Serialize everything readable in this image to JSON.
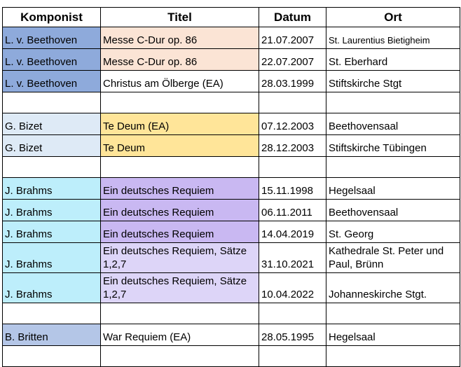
{
  "headers": [
    "Komponist",
    "Titel",
    "Datum",
    "Ort"
  ],
  "rows": [
    {
      "komponist": "L. v. Beethoven",
      "titel": "Messe C-Dur op. 86",
      "datum": "21.07.2007",
      "ort": "St. Laurentius Bietigheim"
    },
    {
      "komponist": "L. v. Beethoven",
      "titel": "Messe C-Dur op. 86",
      "datum": "22.07.2007",
      "ort": "St. Eberhard"
    },
    {
      "komponist": "L. v. Beethoven",
      "titel": "Christus am Ölberge (EA)",
      "datum": "28.03.1999",
      "ort": "Stiftskirche Stgt"
    },
    {
      "komponist": "G. Bizet",
      "titel": "Te Deum (EA)",
      "datum": "07.12.2003",
      "ort": "Beethovensaal"
    },
    {
      "komponist": "G. Bizet",
      "titel": "Te Deum",
      "datum": "28.12.2003",
      "ort": "Stiftskirche Tübingen"
    },
    {
      "komponist": "J. Brahms",
      "titel": "Ein deutsches Requiem",
      "datum": "15.11.1998",
      "ort": "Hegelsaal"
    },
    {
      "komponist": "J. Brahms",
      "titel": "Ein deutsches Requiem",
      "datum": "06.11.2011",
      "ort": "Beethovensaal"
    },
    {
      "komponist": "J. Brahms",
      "titel": "Ein deutsches Requiem",
      "datum": "14.04.2019",
      "ort": "St. Georg"
    },
    {
      "komponist": "J. Brahms",
      "titel": "Ein deutsches Requiem, Sätze 1,2,7",
      "datum": "31.10.2021",
      "ort": "Kathedrale St. Peter und Paul, Brünn"
    },
    {
      "komponist": "J. Brahms",
      "titel": "Ein deutsches Requiem, Sätze 1,2,7",
      "datum": "10.04.2022",
      "ort": "Johanneskirche Stgt."
    },
    {
      "komponist": "B. Britten",
      "titel": "War Requiem (EA)",
      "datum": "28.05.1995",
      "ort": "Hegelsaal"
    }
  ],
  "colors": {
    "beethoven": "#8eaadb",
    "messe": "#fbe4d5",
    "bizet": "#deeaf6",
    "tedeum": "#ffe599",
    "brahms": "#bdeefb",
    "requiem": "#c9b8f2",
    "requiem_light": "#ddd5f8",
    "britten": "#b4c6e7"
  }
}
